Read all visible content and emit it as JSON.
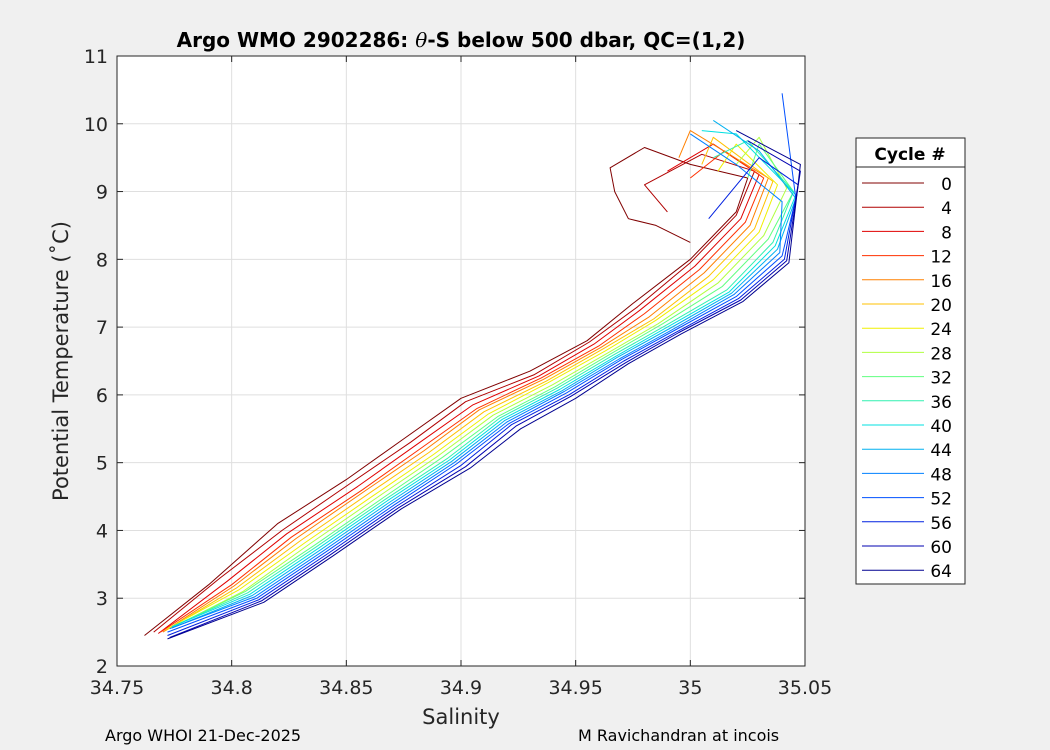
{
  "chart_data": {
    "type": "line",
    "title_prefix": "Argo WMO 2902286: ",
    "title_symbol": "θ",
    "title_suffix": "-S below 500 dbar,  QC=(1,2)",
    "xlabel": "Salinity",
    "ylabel": "Potential Temperature (˚C)",
    "xlim": [
      34.75,
      35.05
    ],
    "ylim": [
      2,
      11
    ],
    "xticks": [
      34.75,
      34.8,
      34.85,
      34.9,
      34.95,
      35,
      35.05
    ],
    "xtick_labels": [
      "34.75",
      "34.8",
      "34.85",
      "34.9",
      "34.95",
      "35",
      "35.05"
    ],
    "yticks": [
      2,
      3,
      4,
      5,
      6,
      7,
      8,
      9,
      10,
      11
    ],
    "ytick_labels": [
      "2",
      "3",
      "4",
      "5",
      "6",
      "7",
      "8",
      "9",
      "10",
      "11"
    ],
    "grid": true,
    "legend": {
      "title": "Cycle #",
      "position": "right",
      "entries": [
        {
          "label": "0",
          "color": "#800000"
        },
        {
          "label": "4",
          "color": "#b00000"
        },
        {
          "label": "8",
          "color": "#e00000"
        },
        {
          "label": "12",
          "color": "#ff3000"
        },
        {
          "label": "16",
          "color": "#ff8000"
        },
        {
          "label": "20",
          "color": "#ffc000"
        },
        {
          "label": "24",
          "color": "#f0f000"
        },
        {
          "label": "28",
          "color": "#b0ff40"
        },
        {
          "label": "32",
          "color": "#60ff80"
        },
        {
          "label": "36",
          "color": "#30f0b0"
        },
        {
          "label": "40",
          "color": "#00e0e0"
        },
        {
          "label": "44",
          "color": "#00b0f0"
        },
        {
          "label": "48",
          "color": "#0080ff"
        },
        {
          "label": "52",
          "color": "#0050ff"
        },
        {
          "label": "56",
          "color": "#0020e0"
        },
        {
          "label": "60",
          "color": "#0000b0"
        },
        {
          "label": "64",
          "color": "#000090"
        }
      ]
    },
    "series": [
      {
        "name": "0",
        "color": "#800000",
        "s": [
          34.762,
          34.79,
          34.82,
          34.85,
          34.875,
          34.9,
          34.93,
          34.955,
          34.975,
          35.0,
          35.02,
          35.025,
          35.0,
          34.98,
          34.965,
          34.967,
          34.973,
          34.985,
          35.0
        ],
        "t": [
          2.45,
          3.2,
          4.1,
          4.75,
          5.35,
          5.95,
          6.35,
          6.8,
          7.35,
          8.0,
          8.7,
          9.2,
          9.4,
          9.65,
          9.35,
          9.0,
          8.6,
          8.5,
          8.25
        ]
      },
      {
        "name": "4",
        "color": "#b00000",
        "s": [
          34.766,
          34.795,
          34.822,
          34.852,
          34.878,
          34.902,
          34.932,
          34.956,
          34.977,
          35.0,
          35.02,
          35.028,
          35.005,
          34.98,
          34.99
        ],
        "t": [
          2.5,
          3.3,
          4.0,
          4.7,
          5.3,
          5.9,
          6.3,
          6.78,
          7.3,
          7.95,
          8.65,
          9.3,
          9.55,
          9.1,
          8.7
        ]
      },
      {
        "name": "8",
        "color": "#e00000",
        "s": [
          34.768,
          34.798,
          34.824,
          34.855,
          34.88,
          34.905,
          34.934,
          34.958,
          34.978,
          35.002,
          35.022,
          35.03,
          35.01,
          34.99
        ],
        "t": [
          2.48,
          3.25,
          3.95,
          4.65,
          5.25,
          5.85,
          6.28,
          6.75,
          7.25,
          7.9,
          8.6,
          9.25,
          9.7,
          9.3
        ]
      },
      {
        "name": "12",
        "color": "#ff3000",
        "s": [
          34.769,
          34.8,
          34.826,
          34.857,
          34.882,
          34.907,
          34.935,
          34.96,
          34.98,
          35.004,
          35.024,
          35.032,
          35.015,
          35.0
        ],
        "t": [
          2.5,
          3.2,
          3.9,
          4.6,
          5.2,
          5.8,
          6.25,
          6.72,
          7.2,
          7.85,
          8.55,
          9.2,
          9.6,
          9.2
        ]
      },
      {
        "name": "16",
        "color": "#ff8000",
        "s": [
          34.77,
          34.801,
          34.828,
          34.858,
          34.884,
          34.908,
          34.936,
          34.961,
          34.982,
          35.006,
          35.026,
          35.034,
          35.0,
          34.995
        ],
        "t": [
          2.5,
          3.18,
          3.88,
          4.58,
          5.18,
          5.78,
          6.23,
          6.7,
          7.15,
          7.8,
          8.5,
          9.2,
          9.9,
          9.5
        ]
      },
      {
        "name": "20",
        "color": "#ffc000",
        "s": [
          34.771,
          34.802,
          34.83,
          34.86,
          34.886,
          34.91,
          34.937,
          34.962,
          34.984,
          35.008,
          35.028,
          35.036,
          35.01,
          35.005
        ],
        "t": [
          2.52,
          3.15,
          3.85,
          4.55,
          5.15,
          5.75,
          6.2,
          6.68,
          7.12,
          7.75,
          8.45,
          9.15,
          9.8,
          9.4
        ]
      },
      {
        "name": "24",
        "color": "#f0f000",
        "s": [
          34.772,
          34.803,
          34.832,
          34.862,
          34.888,
          34.912,
          34.938,
          34.963,
          34.985,
          35.01,
          35.03,
          35.038,
          35.02,
          35.012
        ],
        "t": [
          2.55,
          3.12,
          3.82,
          4.52,
          5.12,
          5.72,
          6.18,
          6.65,
          7.1,
          7.7,
          8.4,
          9.1,
          9.7,
          9.3
        ]
      },
      {
        "name": "28",
        "color": "#b0ff40",
        "s": [
          34.773,
          34.805,
          34.834,
          34.864,
          34.89,
          34.914,
          34.94,
          34.964,
          34.986,
          35.012,
          35.032,
          35.042,
          35.03,
          35.02
        ],
        "t": [
          2.55,
          3.1,
          3.8,
          4.5,
          5.1,
          5.7,
          6.15,
          6.62,
          7.05,
          7.65,
          8.35,
          9.05,
          9.8,
          9.4
        ]
      },
      {
        "name": "32",
        "color": "#60ff80",
        "s": [
          34.774,
          34.806,
          34.836,
          34.866,
          34.892,
          34.916,
          34.941,
          34.965,
          34.988,
          35.014,
          35.034,
          35.045,
          35.03,
          35.025
        ],
        "t": [
          2.57,
          3.1,
          3.78,
          4.48,
          5.08,
          5.68,
          6.12,
          6.6,
          7.05,
          7.6,
          8.3,
          9.0,
          9.7,
          9.2
        ]
      },
      {
        "name": "36",
        "color": "#30f0b0",
        "s": [
          34.774,
          34.807,
          34.837,
          34.867,
          34.894,
          34.917,
          34.942,
          34.966,
          34.989,
          35.016,
          35.036,
          35.045,
          35.025,
          35.01
        ],
        "t": [
          2.58,
          3.08,
          3.76,
          4.46,
          5.06,
          5.66,
          6.1,
          6.58,
          7.02,
          7.55,
          8.25,
          9.0,
          9.75,
          9.5
        ]
      },
      {
        "name": "40",
        "color": "#00e0e0",
        "s": [
          34.774,
          34.808,
          34.838,
          34.868,
          34.895,
          34.918,
          34.943,
          34.967,
          34.99,
          35.017,
          35.037,
          35.046,
          35.02,
          35.005
        ],
        "t": [
          2.58,
          3.06,
          3.74,
          4.44,
          5.04,
          5.64,
          6.08,
          6.56,
          7.0,
          7.52,
          8.2,
          8.95,
          9.85,
          9.9
        ]
      },
      {
        "name": "44",
        "color": "#00b0f0",
        "s": [
          34.774,
          34.809,
          34.839,
          34.869,
          34.896,
          34.919,
          34.944,
          34.968,
          34.991,
          35.018,
          35.038,
          35.046,
          35.03,
          35.01
        ],
        "t": [
          2.56,
          3.04,
          3.72,
          4.42,
          5.02,
          5.62,
          6.06,
          6.55,
          6.98,
          7.5,
          8.15,
          8.9,
          9.6,
          10.05
        ]
      },
      {
        "name": "48",
        "color": "#0080ff",
        "s": [
          34.773,
          34.81,
          34.84,
          34.87,
          34.897,
          34.92,
          34.945,
          34.969,
          34.992,
          35.019,
          35.039,
          35.04,
          35.02,
          35.0
        ],
        "t": [
          2.55,
          3.02,
          3.7,
          4.4,
          5.0,
          5.6,
          6.05,
          6.53,
          6.96,
          7.48,
          8.1,
          8.85,
          9.4,
          9.85
        ]
      },
      {
        "name": "52",
        "color": "#0050ff",
        "s": [
          34.772,
          34.811,
          34.841,
          34.871,
          34.898,
          34.921,
          34.946,
          34.97,
          34.993,
          35.02,
          35.04,
          35.046,
          35.04
        ],
        "t": [
          2.5,
          3.0,
          3.68,
          4.38,
          4.98,
          5.58,
          6.03,
          6.52,
          6.95,
          7.45,
          8.05,
          8.9,
          10.45
        ]
      },
      {
        "name": "56",
        "color": "#0020e0",
        "s": [
          34.772,
          34.812,
          34.842,
          34.872,
          34.9,
          34.922,
          34.947,
          34.971,
          34.994,
          35.021,
          35.041,
          35.047,
          35.03,
          35.008
        ],
        "t": [
          2.45,
          2.98,
          3.66,
          4.36,
          4.96,
          5.56,
          6.0,
          6.5,
          6.93,
          7.42,
          8.0,
          9.1,
          9.5,
          8.6
        ]
      },
      {
        "name": "60",
        "color": "#0000b0",
        "s": [
          34.773,
          34.813,
          34.843,
          34.873,
          34.902,
          34.924,
          34.948,
          34.972,
          34.995,
          35.022,
          35.042,
          35.048,
          35.025
        ],
        "t": [
          2.42,
          2.96,
          3.64,
          4.34,
          4.94,
          5.54,
          5.98,
          6.48,
          6.92,
          7.4,
          7.98,
          9.3,
          9.75
        ]
      },
      {
        "name": "64",
        "color": "#000090",
        "s": [
          34.772,
          34.814,
          34.844,
          34.874,
          34.904,
          34.926,
          34.95,
          34.973,
          34.996,
          35.023,
          35.043,
          35.048,
          35.02
        ],
        "t": [
          2.4,
          2.94,
          3.62,
          4.32,
          4.92,
          5.5,
          5.95,
          6.46,
          6.9,
          7.38,
          7.95,
          9.4,
          9.9
        ]
      }
    ]
  },
  "footer": {
    "left": "Argo WHOI 21-Dec-2025",
    "right": "M Ravichandran at incois"
  }
}
